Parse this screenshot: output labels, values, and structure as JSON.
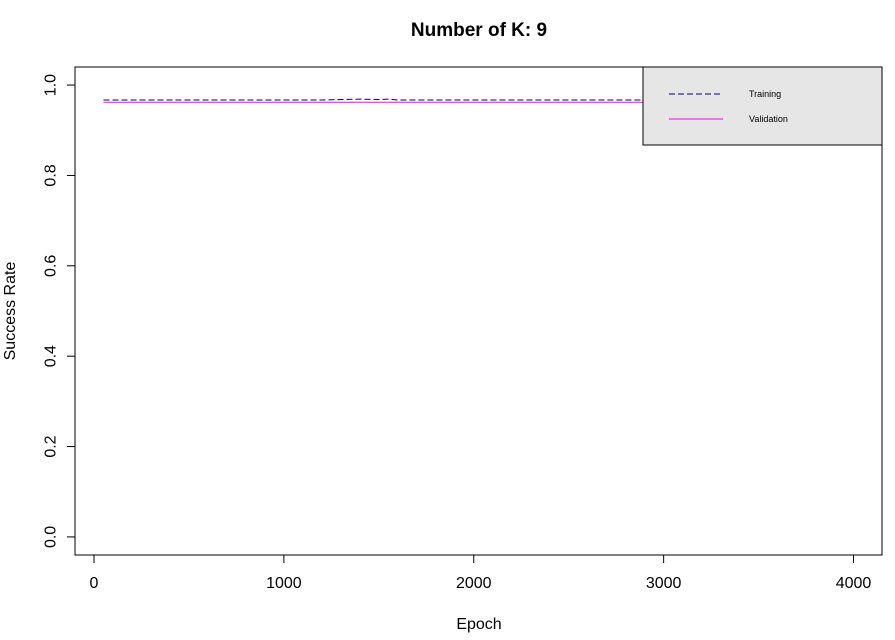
{
  "chart_data": {
    "type": "line",
    "title": "Number of K: 9",
    "xlabel": "Epoch",
    "ylabel": "Success Rate",
    "xlim": [
      -100,
      4150
    ],
    "ylim": [
      -0.04,
      1.04
    ],
    "x_ticks": [
      0,
      1000,
      2000,
      3000,
      4000
    ],
    "x_tick_labels": [
      "0",
      "1000",
      "2000",
      "3000",
      "4000"
    ],
    "y_ticks": [
      0.0,
      0.2,
      0.4,
      0.6,
      0.8,
      1.0
    ],
    "y_tick_labels": [
      "0.0",
      "0.2",
      "0.4",
      "0.6",
      "0.8",
      "1.0"
    ],
    "grid": false,
    "legend_position": "top-right",
    "legend_background": "#e6e6e6",
    "series": [
      {
        "name": "Training",
        "color": "#00008b",
        "dash": "dashed",
        "x": [
          50,
          300,
          600,
          900,
          1200,
          1300,
          1400,
          1500,
          1550,
          1600,
          1800,
          2000,
          2300,
          2600,
          2900,
          3200,
          3500,
          3800,
          4100
        ],
        "y": [
          0.967,
          0.967,
          0.967,
          0.967,
          0.967,
          0.968,
          0.969,
          0.968,
          0.969,
          0.967,
          0.967,
          0.967,
          0.967,
          0.967,
          0.967,
          0.967,
          0.967,
          0.967,
          0.967
        ]
      },
      {
        "name": "Validation",
        "color": "#ff00ff",
        "dash": "solid",
        "x": [
          50,
          300,
          600,
          900,
          1200,
          1500,
          1800,
          2100,
          2400,
          2700,
          3000,
          3300,
          3600,
          3900,
          4100
        ],
        "y": [
          0.962,
          0.962,
          0.962,
          0.962,
          0.962,
          0.962,
          0.962,
          0.962,
          0.962,
          0.962,
          0.962,
          0.962,
          0.962,
          0.962,
          0.962
        ]
      }
    ]
  }
}
